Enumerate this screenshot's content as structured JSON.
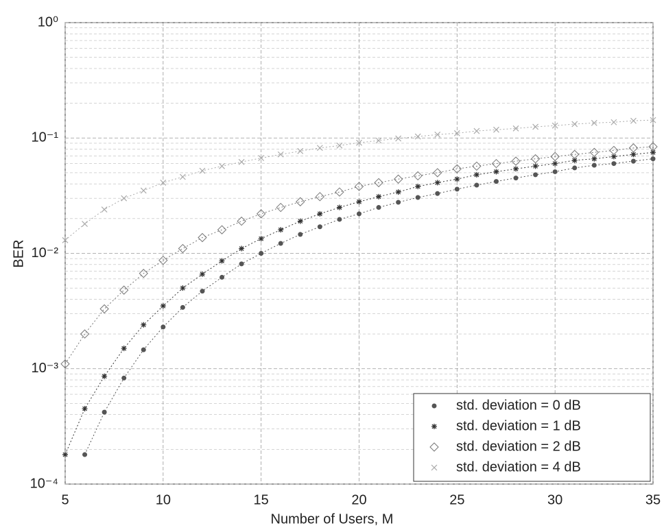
{
  "chart_data": {
    "type": "scatter",
    "x_label": "Number of Users, M",
    "y_label": "BER",
    "x": [
      5,
      6,
      7,
      8,
      9,
      10,
      11,
      12,
      13,
      14,
      15,
      16,
      17,
      18,
      19,
      20,
      21,
      22,
      23,
      24,
      25,
      26,
      27,
      28,
      29,
      30,
      31,
      32,
      33,
      34,
      35
    ],
    "xlim": [
      5,
      35
    ],
    "xticks": [
      5,
      10,
      15,
      20,
      25,
      30,
      35
    ],
    "ylim": [
      0.0001,
      1
    ],
    "log_y": true,
    "grid": true,
    "minor_grid": true,
    "legend_position": "lower right",
    "yticks": [
      {
        "value": 0.0001,
        "label": "10⁻⁴"
      },
      {
        "value": 0.001,
        "label": "10⁻³"
      },
      {
        "value": 0.01,
        "label": "10⁻²"
      },
      {
        "value": 0.1,
        "label": "10⁻¹"
      },
      {
        "value": 1,
        "label": "10⁰"
      }
    ],
    "series": [
      {
        "name": "std. deviation = 0 dB",
        "color": "#555",
        "marker": "dot",
        "values": [
          null,
          0.00018,
          0.00042,
          0.00083,
          0.00146,
          0.0023,
          0.0034,
          0.0047,
          0.0062,
          0.0081,
          0.01,
          0.0122,
          0.0146,
          0.017,
          0.0197,
          0.022,
          0.025,
          0.0277,
          0.0305,
          0.033,
          0.036,
          0.039,
          0.042,
          0.045,
          0.048,
          0.051,
          0.055,
          0.058,
          0.06,
          0.063,
          0.066
        ]
      },
      {
        "name": "std. deviation = 1 dB",
        "color": "#333",
        "marker": "star",
        "values": [
          0.00018,
          0.00045,
          0.00086,
          0.0015,
          0.0024,
          0.0035,
          0.005,
          0.0066,
          0.0086,
          0.011,
          0.0134,
          0.016,
          0.019,
          0.022,
          0.025,
          0.028,
          0.031,
          0.034,
          0.038,
          0.041,
          0.044,
          0.048,
          0.051,
          0.054,
          0.057,
          0.06,
          0.064,
          0.066,
          0.069,
          0.072,
          0.075
        ]
      },
      {
        "name": "std. deviation = 2 dB",
        "color": "#777",
        "marker": "diamond",
        "values": [
          0.0011,
          0.002,
          0.0033,
          0.0048,
          0.0067,
          0.0087,
          0.011,
          0.0137,
          0.016,
          0.019,
          0.022,
          0.025,
          0.028,
          0.031,
          0.034,
          0.038,
          0.041,
          0.044,
          0.047,
          0.05,
          0.054,
          0.057,
          0.06,
          0.063,
          0.066,
          0.069,
          0.072,
          0.075,
          0.078,
          0.082,
          0.084
        ]
      },
      {
        "name": "std. deviation = 4 dB",
        "color": "#aaa",
        "marker": "x",
        "values": [
          0.013,
          0.018,
          0.024,
          0.03,
          0.035,
          0.041,
          0.046,
          0.052,
          0.057,
          0.062,
          0.067,
          0.072,
          0.077,
          0.082,
          0.086,
          0.091,
          0.095,
          0.099,
          0.103,
          0.107,
          0.11,
          0.115,
          0.118,
          0.121,
          0.125,
          0.128,
          0.132,
          0.135,
          0.137,
          0.141,
          0.143
        ]
      }
    ]
  }
}
